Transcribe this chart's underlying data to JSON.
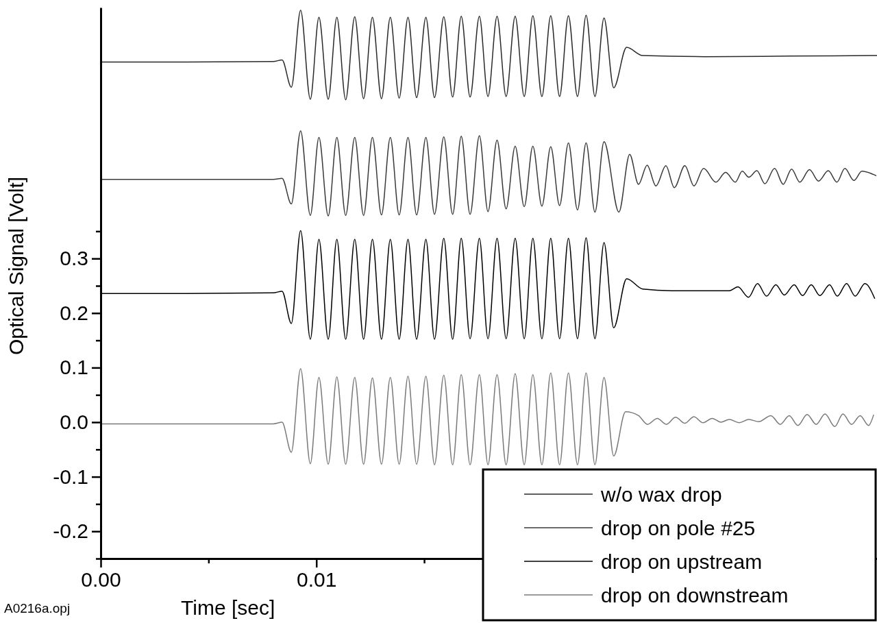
{
  "chart_data": {
    "type": "line",
    "xlabel": "Time [sec]",
    "ylabel": "Optical Signal [Volt]",
    "annotations": [
      "A0216a.opj"
    ],
    "xlim": [
      0,
      0.036
    ],
    "xticks": [
      {
        "value": 0,
        "label": "0.00"
      },
      {
        "value": 0.005,
        "label": null
      },
      0.01,
      {
        "value": 0.015,
        "label": null
      }
    ],
    "ylim": [
      -0.25,
      0.76
    ],
    "yticks": [
      {
        "value": -0.25,
        "label": null
      },
      -0.2,
      {
        "value": -0.15,
        "label": null
      },
      -0.1,
      {
        "value": -0.05,
        "label": null
      },
      {
        "value": 0,
        "label": "0.0"
      },
      {
        "value": 0.05,
        "label": null
      },
      0.1,
      {
        "value": 0.15,
        "label": null
      },
      0.2,
      {
        "value": 0.25,
        "label": null
      },
      0.3,
      {
        "value": 0.35,
        "label": null
      }
    ],
    "legend": "bottom right",
    "marker": "none",
    "line_style": "solid",
    "series": [
      {
        "name": "w/o wax drop",
        "color": "#2a2a2a",
        "x": [
          0,
          0.004,
          0.008,
          0.00841,
          0.00884,
          0.00927,
          0.00972,
          0.01012,
          0.01055,
          0.01095,
          0.01136,
          0.01178,
          0.01219,
          0.0126,
          0.01302,
          0.01343,
          0.01384,
          0.01425,
          0.01465,
          0.01508,
          0.01548,
          0.01591,
          0.01632,
          0.01672,
          0.01713,
          0.01756,
          0.01796,
          0.01838,
          0.0188,
          0.01922,
          0.01964,
          0.02004,
          0.02046,
          0.02087,
          0.02128,
          0.02169,
          0.02211,
          0.02251,
          0.02292,
          0.02334,
          0.02379,
          0.02439,
          0.02513,
          0.028,
          0.032,
          0.036
        ],
        "values": [
          0.66,
          0.66,
          0.661,
          0.664,
          0.614,
          0.755,
          0.592,
          0.742,
          0.592,
          0.742,
          0.591,
          0.743,
          0.593,
          0.742,
          0.593,
          0.742,
          0.594,
          0.742,
          0.595,
          0.742,
          0.595,
          0.743,
          0.596,
          0.744,
          0.596,
          0.744,
          0.597,
          0.744,
          0.597,
          0.744,
          0.597,
          0.745,
          0.597,
          0.745,
          0.597,
          0.745,
          0.597,
          0.746,
          0.597,
          0.741,
          0.613,
          0.687,
          0.672,
          0.67,
          0.671,
          0.672
        ]
      },
      {
        "name": "drop on pole #25",
        "color": "#3a3a3a",
        "x": [
          0,
          0.004,
          0.008,
          0.00841,
          0.00884,
          0.00927,
          0.00972,
          0.01012,
          0.01055,
          0.01095,
          0.01136,
          0.01178,
          0.01219,
          0.0126,
          0.01302,
          0.01343,
          0.01384,
          0.01425,
          0.01465,
          0.01508,
          0.01548,
          0.01591,
          0.01632,
          0.01672,
          0.01713,
          0.01756,
          0.01796,
          0.01838,
          0.0188,
          0.01922,
          0.01964,
          0.02004,
          0.02046,
          0.02087,
          0.02128,
          0.02169,
          0.02211,
          0.02251,
          0.02292,
          0.02334,
          0.02403,
          0.02453,
          0.02494,
          0.02534,
          0.02575,
          0.02621,
          0.0266,
          0.02709,
          0.02751,
          0.02796,
          0.02853,
          0.02898,
          0.02943,
          0.02975,
          0.03006,
          0.03043,
          0.0308,
          0.03125,
          0.03165,
          0.03204,
          0.03242,
          0.03287,
          0.03329,
          0.03374,
          0.03414,
          0.03451,
          0.03493,
          0.0353,
          0.03595
        ],
        "values": [
          0.445,
          0.445,
          0.445,
          0.447,
          0.4,
          0.534,
          0.379,
          0.522,
          0.378,
          0.522,
          0.379,
          0.522,
          0.379,
          0.522,
          0.38,
          0.522,
          0.38,
          0.522,
          0.38,
          0.522,
          0.381,
          0.523,
          0.381,
          0.524,
          0.381,
          0.525,
          0.386,
          0.517,
          0.391,
          0.506,
          0.395,
          0.506,
          0.396,
          0.505,
          0.397,
          0.512,
          0.389,
          0.512,
          0.385,
          0.514,
          0.385,
          0.491,
          0.436,
          0.471,
          0.433,
          0.47,
          0.43,
          0.47,
          0.433,
          0.465,
          0.44,
          0.458,
          0.44,
          0.46,
          0.449,
          0.461,
          0.437,
          0.465,
          0.436,
          0.464,
          0.44,
          0.463,
          0.442,
          0.461,
          0.44,
          0.465,
          0.443,
          0.46,
          0.452
        ]
      },
      {
        "name": "drop on upstream",
        "color": "#000000",
        "x": [
          0,
          0.004,
          0.008,
          0.00841,
          0.00884,
          0.00927,
          0.00972,
          0.01012,
          0.01055,
          0.01095,
          0.01136,
          0.01178,
          0.01219,
          0.0126,
          0.01302,
          0.01343,
          0.01384,
          0.01425,
          0.01465,
          0.01508,
          0.01548,
          0.01591,
          0.01632,
          0.01672,
          0.01713,
          0.01756,
          0.01796,
          0.01838,
          0.0188,
          0.01922,
          0.01964,
          0.02004,
          0.02046,
          0.02087,
          0.02128,
          0.02169,
          0.02211,
          0.02251,
          0.02292,
          0.02334,
          0.02379,
          0.02439,
          0.02514,
          0.0265,
          0.028,
          0.02915,
          0.02955,
          0.03004,
          0.03046,
          0.03088,
          0.03131,
          0.0317,
          0.03216,
          0.03255,
          0.03295,
          0.03335,
          0.0338,
          0.03416,
          0.03459,
          0.03499,
          0.03544,
          0.03589
        ],
        "values": [
          0.236,
          0.236,
          0.237,
          0.24,
          0.181,
          0.351,
          0.152,
          0.335,
          0.152,
          0.335,
          0.152,
          0.335,
          0.152,
          0.335,
          0.152,
          0.335,
          0.152,
          0.335,
          0.152,
          0.335,
          0.152,
          0.337,
          0.152,
          0.337,
          0.153,
          0.337,
          0.153,
          0.337,
          0.153,
          0.337,
          0.153,
          0.337,
          0.153,
          0.337,
          0.153,
          0.337,
          0.153,
          0.338,
          0.153,
          0.329,
          0.173,
          0.263,
          0.244,
          0.241,
          0.241,
          0.241,
          0.248,
          0.229,
          0.254,
          0.231,
          0.252,
          0.233,
          0.252,
          0.232,
          0.252,
          0.232,
          0.252,
          0.231,
          0.254,
          0.231,
          0.254,
          0.227
        ]
      },
      {
        "name": "drop on downstream",
        "color": "#7a7a7a",
        "x": [
          0,
          0.004,
          0.008,
          0.00841,
          0.00884,
          0.00927,
          0.00972,
          0.01012,
          0.01055,
          0.01095,
          0.01136,
          0.01178,
          0.01219,
          0.0126,
          0.01302,
          0.01343,
          0.01384,
          0.01425,
          0.01465,
          0.01508,
          0.01548,
          0.01591,
          0.01632,
          0.01672,
          0.01713,
          0.01756,
          0.01796,
          0.01838,
          0.0188,
          0.01922,
          0.01964,
          0.02004,
          0.02046,
          0.02087,
          0.02128,
          0.02169,
          0.02211,
          0.02251,
          0.02292,
          0.02334,
          0.02379,
          0.02434,
          0.02494,
          0.02536,
          0.02581,
          0.02623,
          0.02666,
          0.02709,
          0.02751,
          0.02793,
          0.02836,
          0.02876,
          0.02915,
          0.02961,
          0.03006,
          0.03051,
          0.03108,
          0.03151,
          0.03193,
          0.03233,
          0.03276,
          0.03318,
          0.03359,
          0.03404,
          0.03442,
          0.03482,
          0.03522,
          0.03561,
          0.03584
        ],
        "values": [
          -0.003,
          -0.003,
          -0.003,
          0.0,
          -0.055,
          0.098,
          -0.076,
          0.082,
          -0.077,
          0.083,
          -0.077,
          0.082,
          -0.077,
          0.081,
          -0.077,
          0.082,
          -0.077,
          0.084,
          -0.077,
          0.084,
          -0.078,
          0.086,
          -0.078,
          0.087,
          -0.078,
          0.087,
          -0.078,
          0.087,
          -0.078,
          0.089,
          -0.078,
          0.087,
          -0.078,
          0.09,
          -0.078,
          0.09,
          -0.078,
          0.09,
          -0.078,
          0.082,
          -0.062,
          0.019,
          0.012,
          -0.004,
          0.007,
          -0.004,
          0.009,
          -0.002,
          0.01,
          -0.001,
          0.007,
          0.0,
          0.005,
          -0.001,
          0.005,
          0.001,
          0.012,
          -0.004,
          0.012,
          -0.006,
          0.014,
          -0.004,
          0.015,
          -0.008,
          0.015,
          -0.004,
          0.012,
          -0.006,
          0.013
        ]
      }
    ]
  }
}
